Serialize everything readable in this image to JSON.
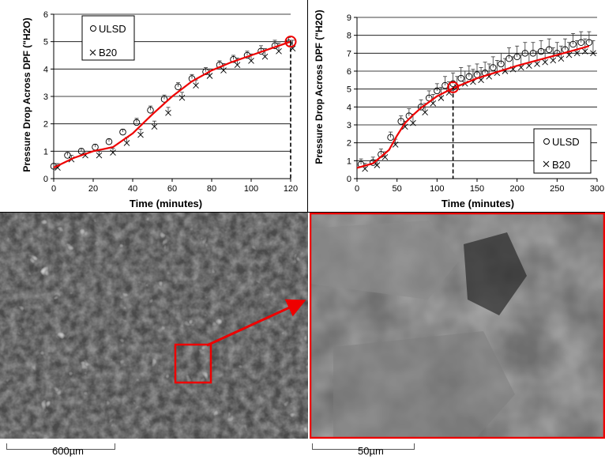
{
  "chart_data": [
    {
      "type": "scatter",
      "title": "",
      "xlabel": "Time (minutes)",
      "ylabel": "Pressure Drop Across DPF (\"H2O)",
      "xlim": [
        0,
        120
      ],
      "ylim": [
        0,
        6
      ],
      "xticks": [
        0,
        20,
        40,
        60,
        80,
        100,
        120
      ],
      "yticks": [
        0,
        1,
        2,
        3,
        4,
        5,
        6
      ],
      "grid": "horizontal",
      "legend_position": "top-left",
      "marker_line": {
        "x": 120,
        "y": 5
      },
      "series": [
        {
          "name": "ULSD",
          "marker": "circle",
          "x": [
            0,
            7,
            14,
            21,
            28,
            35,
            42,
            49,
            56,
            63,
            70,
            77,
            84,
            91,
            98,
            105,
            112,
            119
          ],
          "values": [
            0.45,
            0.85,
            1.0,
            1.15,
            1.35,
            1.7,
            2.05,
            2.5,
            2.9,
            3.35,
            3.65,
            3.9,
            4.15,
            4.35,
            4.5,
            4.65,
            4.85,
            4.95
          ],
          "err": [
            0.1,
            0.1,
            0.1,
            0.1,
            0.1,
            0.1,
            0.15,
            0.15,
            0.15,
            0.15,
            0.15,
            0.15,
            0.15,
            0.15,
            0.15,
            0.2,
            0.2,
            0.2
          ]
        },
        {
          "name": "B20",
          "marker": "x",
          "x": [
            2,
            9,
            16,
            23,
            30,
            37,
            44,
            51,
            58,
            65,
            72,
            79,
            86,
            93,
            100,
            107,
            114,
            121
          ],
          "values": [
            0.4,
            0.7,
            0.85,
            0.85,
            0.95,
            1.3,
            1.6,
            1.9,
            2.4,
            2.95,
            3.4,
            3.75,
            3.95,
            4.15,
            4.3,
            4.45,
            4.65,
            4.75
          ],
          "err": [
            0.15,
            0.15,
            0.15,
            0.15,
            0.15,
            0.2,
            0.2,
            0.2,
            0.2,
            0.2,
            0.2,
            0.25,
            0.25,
            0.25,
            0.25,
            0.3,
            0.3,
            0.3
          ]
        }
      ],
      "fit": {
        "x": [
          0,
          10,
          20,
          30,
          40,
          50,
          60,
          70,
          80,
          90,
          100,
          110,
          120
        ],
        "values": [
          0.4,
          0.75,
          1.0,
          1.15,
          1.65,
          2.35,
          3.0,
          3.55,
          3.95,
          4.25,
          4.5,
          4.75,
          5.0
        ]
      }
    },
    {
      "type": "scatter",
      "title": "",
      "xlabel": "Time (minutes)",
      "ylabel": "Pressure Drop Across DPF (\"H2O)",
      "xlim": [
        0,
        300
      ],
      "ylim": [
        0,
        9
      ],
      "xticks": [
        0,
        50,
        100,
        150,
        200,
        250,
        300
      ],
      "yticks": [
        0,
        1,
        2,
        3,
        4,
        5,
        6,
        7,
        8,
        9
      ],
      "grid": "horizontal",
      "legend_position": "bottom-right",
      "marker_line": {
        "x": 120,
        "y": 5.1
      },
      "series": [
        {
          "name": "ULSD",
          "marker": "circle",
          "x": [
            5,
            20,
            30,
            42,
            55,
            65,
            80,
            90,
            100,
            110,
            120,
            130,
            140,
            150,
            160,
            170,
            180,
            190,
            200,
            210,
            220,
            230,
            240,
            250,
            260,
            270,
            280,
            290
          ],
          "values": [
            0.8,
            0.9,
            1.35,
            2.3,
            3.2,
            3.5,
            4.0,
            4.5,
            4.9,
            5.2,
            5.3,
            5.6,
            5.7,
            5.8,
            5.9,
            6.2,
            6.4,
            6.7,
            6.8,
            7.0,
            7.0,
            7.1,
            7.2,
            7.0,
            7.2,
            7.5,
            7.6,
            7.6
          ],
          "err": [
            0.3,
            0.3,
            0.3,
            0.3,
            0.3,
            0.4,
            0.4,
            0.4,
            0.4,
            0.5,
            0.6,
            0.6,
            0.6,
            0.6,
            0.6,
            0.6,
            0.6,
            0.6,
            0.6,
            0.6,
            0.6,
            0.6,
            0.6,
            0.6,
            0.6,
            0.6,
            0.6,
            0.6
          ]
        },
        {
          "name": "B20",
          "marker": "x",
          "x": [
            10,
            25,
            35,
            48,
            60,
            70,
            85,
            95,
            105,
            115,
            125,
            135,
            145,
            155,
            165,
            175,
            185,
            195,
            205,
            215,
            225,
            235,
            245,
            255,
            265,
            275,
            285,
            295
          ],
          "values": [
            0.55,
            0.75,
            1.2,
            1.9,
            2.9,
            3.1,
            3.7,
            4.2,
            4.5,
            4.8,
            5.1,
            5.3,
            5.4,
            5.5,
            5.7,
            5.9,
            6.0,
            6.1,
            6.2,
            6.3,
            6.4,
            6.5,
            6.6,
            6.7,
            6.9,
            7.0,
            7.1,
            7.0
          ],
          "err": [
            0.3,
            0.3,
            0.3,
            0.3,
            0.3,
            0.5,
            0.5,
            0.5,
            0.6,
            0.6,
            0.6,
            0.7,
            0.7,
            0.7,
            0.7,
            0.7,
            0.7,
            0.7,
            0.7,
            0.7,
            0.7,
            0.7,
            0.7,
            0.7,
            0.7,
            0.7,
            0.7,
            0.7
          ]
        }
      ],
      "fit": {
        "x": [
          0,
          20,
          40,
          50,
          60,
          70,
          80,
          100,
          120,
          150,
          200,
          250,
          290
        ],
        "values": [
          0.6,
          0.85,
          1.6,
          2.4,
          3.1,
          3.55,
          3.95,
          4.6,
          5.05,
          5.6,
          6.3,
          6.9,
          7.4
        ]
      }
    }
  ],
  "images": {
    "left_scale_label": "600µm",
    "right_scale_label": "50µm"
  },
  "colors": {
    "fit_line": "#ee0000",
    "callout": "#ee0000",
    "grid": "#000000"
  }
}
